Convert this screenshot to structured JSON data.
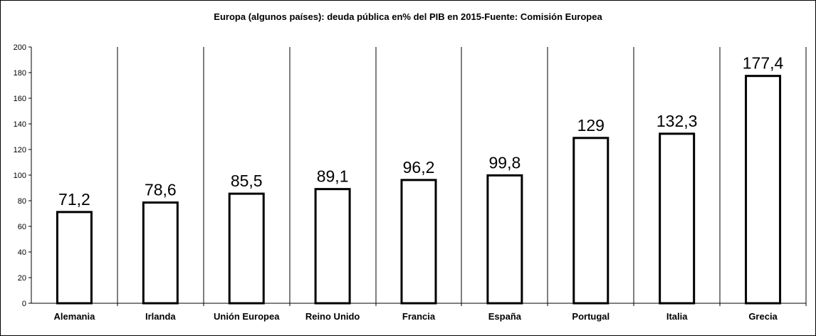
{
  "chart_data": {
    "type": "bar",
    "title": "Europa (algunos países): deuda pública en% del PIB en 2015-Fuente: Comisión Europea",
    "xlabel": "",
    "ylabel": "",
    "categories": [
      "Alemania",
      "Irlanda",
      "Unión Europea",
      "Reino Unido",
      "Francia",
      "España",
      "Portugal",
      "Italia",
      "Grecia"
    ],
    "values": [
      71.2,
      78.6,
      85.5,
      89.1,
      96.2,
      99.8,
      129,
      132.3,
      177.4
    ],
    "data_labels": [
      "71,2",
      "78,6",
      "85,5",
      "89,1",
      "96,2",
      "99,8",
      "129",
      "132,3",
      "177,4"
    ],
    "ylim": [
      0,
      200
    ],
    "yticks": [
      0,
      20,
      40,
      60,
      80,
      100,
      120,
      140,
      160,
      180,
      200
    ],
    "vertical_category_separators": true,
    "bar_fill": "#ffffff",
    "bar_stroke": "#000000"
  }
}
